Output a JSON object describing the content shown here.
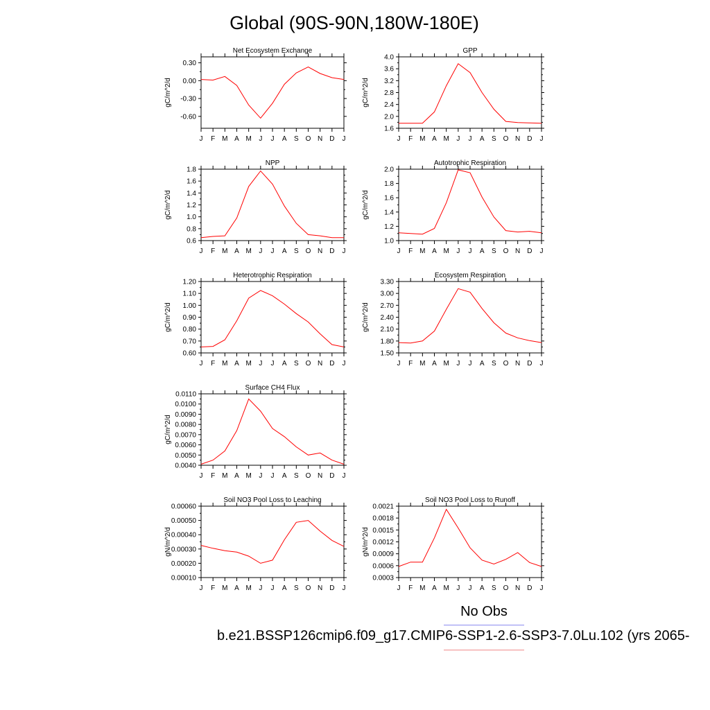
{
  "page": {
    "title": "Global (90S-90N,180W-180E)",
    "legend": {
      "obs_label": "No Obs",
      "obs_color": "#8a8af0",
      "model_label": "b.e21.BSSP126cmip6.f09_g17.CMIP6-SSP1-2.6-SSP3-7.0Lu.102 (yrs 2065-",
      "model_color": "#f08a8a"
    },
    "line_color": "#ff0000"
  },
  "chart_data": [
    {
      "type": "line",
      "title": "Net Ecosystem Exchange",
      "ylabel": "gC/m^2/d",
      "x": [
        "J",
        "F",
        "M",
        "A",
        "M",
        "J",
        "J",
        "A",
        "S",
        "O",
        "N",
        "D",
        "J"
      ],
      "ylim": [
        -0.8,
        0.4
      ],
      "yticks": [
        -0.6,
        -0.3,
        0.0,
        0.3
      ],
      "ytick_labels": [
        "-0.60",
        "-0.30",
        "0.00",
        "0.30"
      ],
      "values": [
        0.02,
        0.01,
        0.07,
        -0.08,
        -0.41,
        -0.63,
        -0.38,
        -0.06,
        0.13,
        0.23,
        0.12,
        0.05,
        0.02
      ]
    },
    {
      "type": "line",
      "title": "GPP",
      "ylabel": "gC/m^2/d",
      "x": [
        "J",
        "F",
        "M",
        "A",
        "M",
        "J",
        "J",
        "A",
        "S",
        "O",
        "N",
        "D",
        "J"
      ],
      "ylim": [
        1.6,
        4.0
      ],
      "yticks": [
        1.6,
        2.0,
        2.4,
        2.8,
        3.2,
        3.6,
        4.0
      ],
      "ytick_labels": [
        "1.6",
        "2.0",
        "2.4",
        "2.8",
        "3.2",
        "3.6",
        "4.0"
      ],
      "values": [
        1.77,
        1.77,
        1.77,
        2.15,
        3.03,
        3.77,
        3.47,
        2.8,
        2.24,
        1.83,
        1.79,
        1.78,
        1.77
      ]
    },
    {
      "type": "line",
      "title": "NPP",
      "ylabel": "gC/m^2/d",
      "x": [
        "J",
        "F",
        "M",
        "A",
        "M",
        "J",
        "J",
        "A",
        "S",
        "O",
        "N",
        "D",
        "J"
      ],
      "ylim": [
        0.6,
        1.8
      ],
      "yticks": [
        0.6,
        0.8,
        1.0,
        1.2,
        1.4,
        1.6,
        1.8
      ],
      "ytick_labels": [
        "0.6",
        "0.8",
        "1.0",
        "1.2",
        "1.4",
        "1.6",
        "1.8"
      ],
      "values": [
        0.65,
        0.67,
        0.68,
        0.98,
        1.51,
        1.77,
        1.55,
        1.18,
        0.89,
        0.7,
        0.68,
        0.65,
        0.65
      ]
    },
    {
      "type": "line",
      "title": "Autotrophic Respiration",
      "ylabel": "gC/m^2/d",
      "x": [
        "J",
        "F",
        "M",
        "A",
        "M",
        "J",
        "J",
        "A",
        "S",
        "O",
        "N",
        "D",
        "J"
      ],
      "ylim": [
        1.0,
        2.0
      ],
      "yticks": [
        1.0,
        1.2,
        1.4,
        1.6,
        1.8,
        2.0
      ],
      "ytick_labels": [
        "1.0",
        "1.2",
        "1.4",
        "1.6",
        "1.8",
        "2.0"
      ],
      "values": [
        1.11,
        1.1,
        1.09,
        1.17,
        1.53,
        1.99,
        1.95,
        1.61,
        1.33,
        1.14,
        1.12,
        1.13,
        1.11
      ]
    },
    {
      "type": "line",
      "title": "Heterotrophic Respiration",
      "ylabel": "gC/m^2/d",
      "x": [
        "J",
        "F",
        "M",
        "A",
        "M",
        "J",
        "J",
        "A",
        "S",
        "O",
        "N",
        "D",
        "J"
      ],
      "ylim": [
        0.6,
        1.2
      ],
      "yticks": [
        0.6,
        0.7,
        0.8,
        0.9,
        1.0,
        1.1,
        1.2
      ],
      "ytick_labels": [
        "0.60",
        "0.70",
        "0.80",
        "0.90",
        "1.00",
        "1.10",
        "1.20"
      ],
      "values": [
        0.65,
        0.655,
        0.71,
        0.87,
        1.06,
        1.125,
        1.08,
        1.01,
        0.93,
        0.86,
        0.76,
        0.67,
        0.65
      ]
    },
    {
      "type": "line",
      "title": "Ecosystem Respiration",
      "ylabel": "gC/m^2/d",
      "x": [
        "J",
        "F",
        "M",
        "A",
        "M",
        "J",
        "J",
        "A",
        "S",
        "O",
        "N",
        "D",
        "J"
      ],
      "ylim": [
        1.5,
        3.3
      ],
      "yticks": [
        1.5,
        1.8,
        2.1,
        2.4,
        2.7,
        3.0,
        3.3
      ],
      "ytick_labels": [
        "1.50",
        "1.80",
        "2.10",
        "2.40",
        "2.70",
        "3.00",
        "3.30"
      ],
      "values": [
        1.76,
        1.75,
        1.8,
        2.05,
        2.6,
        3.12,
        3.03,
        2.62,
        2.26,
        2.0,
        1.88,
        1.81,
        1.76
      ]
    },
    {
      "type": "line",
      "title": "Surface CH4 Flux",
      "ylabel": "gC/m^2/d",
      "x": [
        "J",
        "F",
        "M",
        "A",
        "M",
        "J",
        "J",
        "A",
        "S",
        "O",
        "N",
        "D",
        "J"
      ],
      "ylim": [
        0.004,
        0.011
      ],
      "yticks": [
        0.004,
        0.005,
        0.006,
        0.007,
        0.008,
        0.009,
        0.01,
        0.011
      ],
      "ytick_labels": [
        "0.0040",
        "0.0050",
        "0.0060",
        "0.0070",
        "0.0080",
        "0.0090",
        "0.0100",
        "0.0110"
      ],
      "values": [
        0.0041,
        0.0045,
        0.0054,
        0.0074,
        0.0105,
        0.0093,
        0.0076,
        0.0068,
        0.0058,
        0.005,
        0.0052,
        0.0045,
        0.0041
      ]
    },
    {
      "type": "line",
      "title": "Soil NO3 Pool Loss to Leaching",
      "ylabel": "gN/m^2/d",
      "x": [
        "J",
        "F",
        "M",
        "A",
        "M",
        "J",
        "J",
        "A",
        "S",
        "O",
        "N",
        "D",
        "J"
      ],
      "ylim": [
        0.0001,
        0.0006
      ],
      "yticks": [
        0.0001,
        0.0002,
        0.0003,
        0.0004,
        0.0005,
        0.0006
      ],
      "ytick_labels": [
        "0.00010",
        "0.00020",
        "0.00030",
        "0.00040",
        "0.00050",
        "0.00060"
      ],
      "values": [
        0.000325,
        0.000305,
        0.000288,
        0.000278,
        0.00025,
        0.0002,
        0.000222,
        0.000365,
        0.000487,
        0.0005,
        0.000425,
        0.00036,
        0.000318
      ]
    },
    {
      "type": "line",
      "title": "Soil NO3 Pool Loss to Runoff",
      "ylabel": "gN/m^2/d",
      "x": [
        "J",
        "F",
        "M",
        "A",
        "M",
        "J",
        "J",
        "A",
        "S",
        "O",
        "N",
        "D",
        "J"
      ],
      "ylim": [
        0.0003,
        0.0021
      ],
      "yticks": [
        0.0003,
        0.0006,
        0.0009,
        0.0012,
        0.0015,
        0.0018,
        0.0021
      ],
      "ytick_labels": [
        "0.0003",
        "0.0006",
        "0.0009",
        "0.0012",
        "0.0015",
        "0.0018",
        "0.0021"
      ],
      "values": [
        0.00058,
        0.00069,
        0.00069,
        0.0013,
        0.00202,
        0.00155,
        0.00105,
        0.00074,
        0.00064,
        0.00076,
        0.00093,
        0.00068,
        0.00058
      ]
    }
  ]
}
